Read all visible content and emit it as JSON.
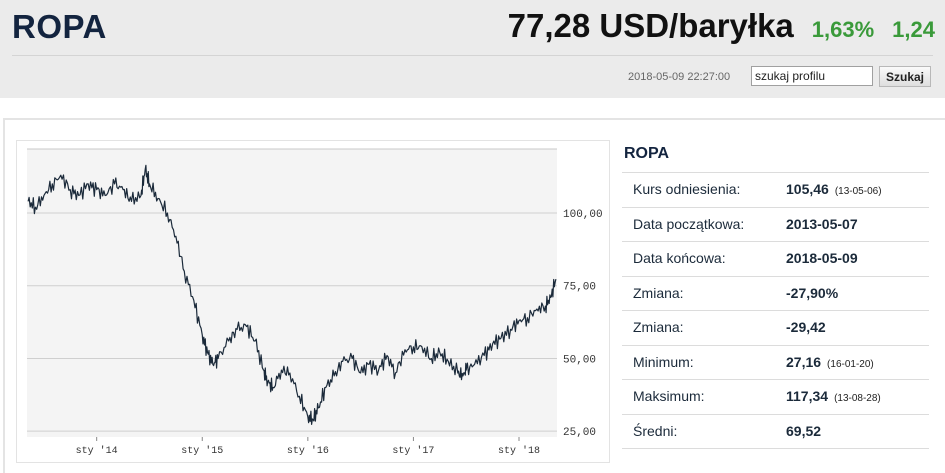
{
  "header": {
    "title": "ROPA",
    "price": "77,28 USD/baryłka",
    "change_pct": "1,63%",
    "change_abs": "1,24",
    "timestamp": "2018-05-09 22:27:00",
    "search": {
      "value": "szukaj profilu",
      "button_label": "Szukaj"
    }
  },
  "colors": {
    "positive": "#3a9a3a",
    "title": "#13243f",
    "line": "#1b2a3a"
  },
  "info": {
    "title": "ROPA",
    "rows": [
      {
        "label": "Kurs odniesienia:",
        "value": "105,46",
        "note": "(13-05-06)"
      },
      {
        "label": "Data początkowa:",
        "value": "2013-05-07",
        "note": ""
      },
      {
        "label": "Data końcowa:",
        "value": "2018-05-09",
        "note": ""
      },
      {
        "label": "Zmiana:",
        "value": "-27,90%",
        "note": ""
      },
      {
        "label": "Zmiana:",
        "value": "-29,42",
        "note": ""
      },
      {
        "label": "Minimum:",
        "value": "27,16",
        "note": "(16-01-20)"
      },
      {
        "label": "Maksimum:",
        "value": "117,34",
        "note": "(13-08-28)"
      },
      {
        "label": "Średni:",
        "value": "69,52",
        "note": ""
      }
    ]
  },
  "chart_data": {
    "type": "line",
    "title": "",
    "xlabel": "",
    "ylabel": "",
    "ylim": [
      23,
      122
    ],
    "xlim": [
      2013.34,
      2018.36
    ],
    "y_ticks": [
      25,
      50,
      75,
      100
    ],
    "y_tick_labels": [
      "25,00",
      "50,00",
      "75,00",
      "100,00"
    ],
    "x_ticks": [
      2014,
      2015,
      2016,
      2017,
      2018
    ],
    "x_tick_labels": [
      "sty '14",
      "sty '15",
      "sty '16",
      "sty '17",
      "sty '18"
    ],
    "grid": true,
    "series": [
      {
        "x": [
          2013.35,
          2013.42,
          2013.5,
          2013.58,
          2013.66,
          2013.75,
          2013.83,
          2013.92,
          2014.0,
          2014.08,
          2014.17,
          2014.25,
          2014.33,
          2014.42,
          2014.46,
          2014.5,
          2014.58,
          2014.67,
          2014.75,
          2014.83,
          2014.92,
          2015.0,
          2015.05,
          2015.1,
          2015.15,
          2015.25,
          2015.33,
          2015.42,
          2015.5,
          2015.58,
          2015.62,
          2015.67,
          2015.75,
          2015.83,
          2015.92,
          2016.0,
          2016.05,
          2016.1,
          2016.17,
          2016.25,
          2016.33,
          2016.42,
          2016.5,
          2016.58,
          2016.67,
          2016.75,
          2016.83,
          2016.92,
          2017.0,
          2017.08,
          2017.17,
          2017.25,
          2017.33,
          2017.42,
          2017.47,
          2017.5,
          2017.58,
          2017.67,
          2017.75,
          2017.83,
          2017.92,
          2018.0,
          2018.08,
          2018.17,
          2018.25,
          2018.3,
          2018.35
        ],
        "y": [
          104,
          102,
          106,
          110,
          113,
          108,
          106,
          110,
          108,
          106,
          110,
          108,
          104,
          106,
          115,
          110,
          105,
          100,
          92,
          80,
          70,
          58,
          52,
          48,
          50,
          56,
          60,
          61,
          56,
          46,
          42,
          40,
          46,
          45,
          37,
          30,
          29,
          33,
          40,
          44,
          49,
          50,
          45,
          48,
          46,
          51,
          45,
          53,
          54,
          54,
          50,
          52,
          49,
          45,
          44,
          46,
          48,
          51,
          55,
          57,
          60,
          63,
          64,
          67,
          68,
          71,
          77.28
        ]
      }
    ]
  }
}
